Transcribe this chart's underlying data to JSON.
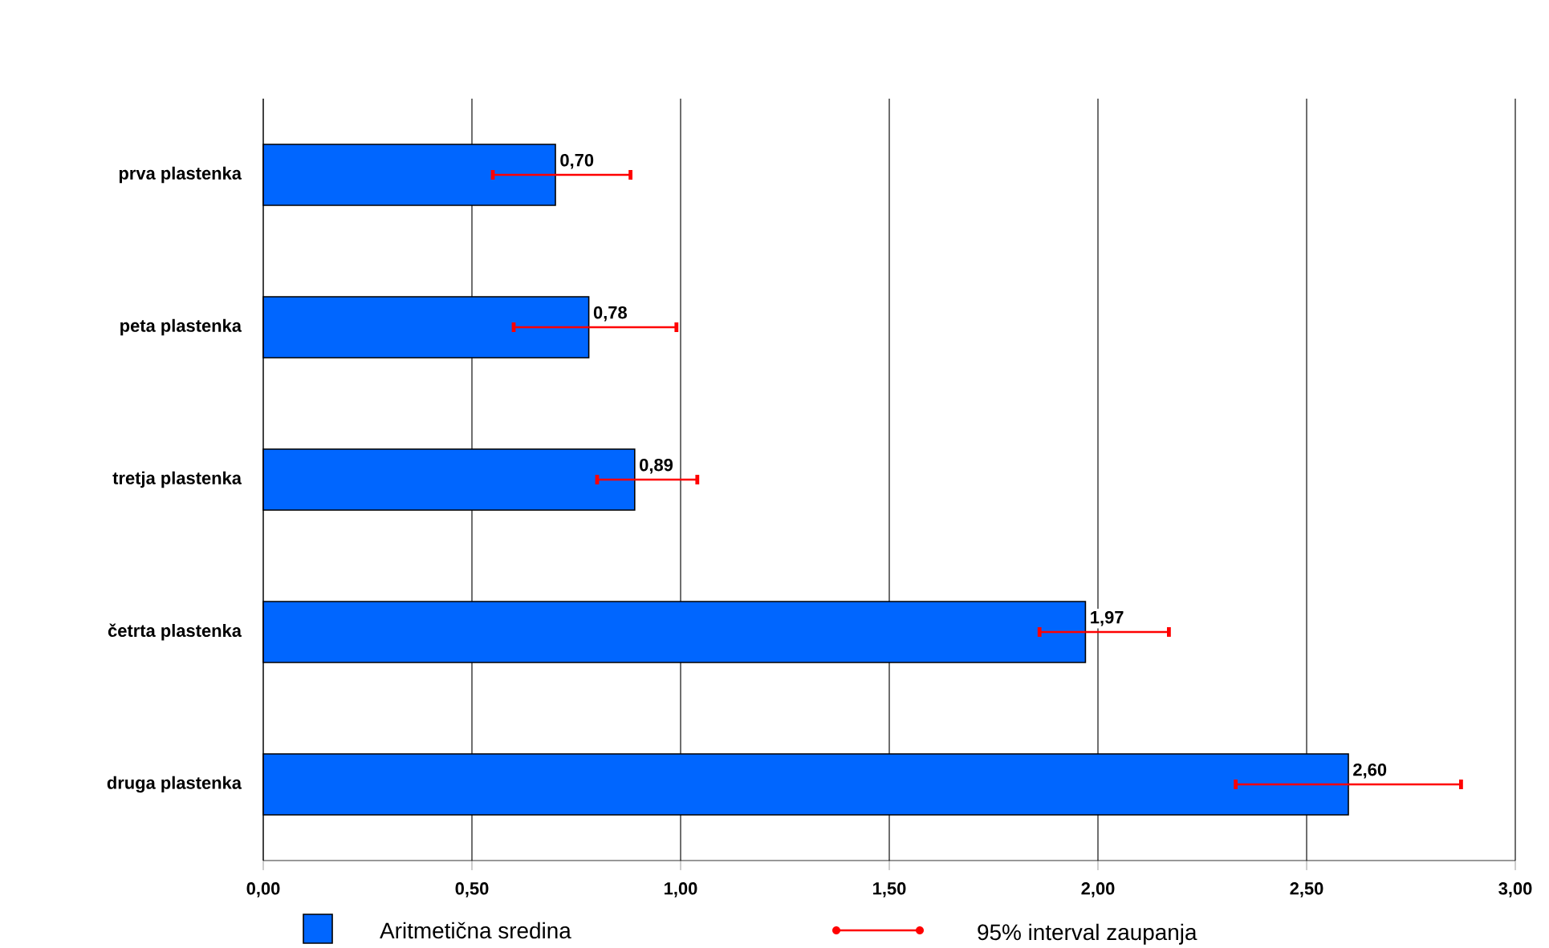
{
  "chart_data": {
    "type": "bar",
    "orientation": "horizontal",
    "categories": [
      "prva plastenka",
      "peta plastenka",
      "tretja plastenka",
      "četrta plastenka",
      "druga plastenka"
    ],
    "series": [
      {
        "name": "Aritmetična sredina",
        "color": "#0066ff",
        "values": [
          0.7,
          0.78,
          0.89,
          1.97,
          2.6
        ],
        "errors": [
          [
            0.55,
            0.88
          ],
          [
            0.6,
            0.99
          ],
          [
            0.8,
            1.04
          ],
          [
            1.86,
            2.17
          ],
          [
            2.33,
            2.87
          ]
        ],
        "value_labels": [
          "0,70",
          "0,78",
          "0,89",
          "1,97",
          "2,60"
        ]
      }
    ],
    "annotations": [
      "95% interval zaupanja"
    ],
    "xlim": [
      0,
      3
    ],
    "xticks": [
      {
        "value": 0,
        "label": "0,00"
      },
      {
        "value": 0.5,
        "label": "0,50"
      },
      {
        "value": 1,
        "label": "1,00"
      },
      {
        "value": 1.5,
        "label": "1,50"
      },
      {
        "value": 2,
        "label": "2,00"
      },
      {
        "value": 2.5,
        "label": "2,50"
      },
      {
        "value": 3,
        "label": "3,00"
      }
    ],
    "grid": "x",
    "legend": "bottom"
  }
}
